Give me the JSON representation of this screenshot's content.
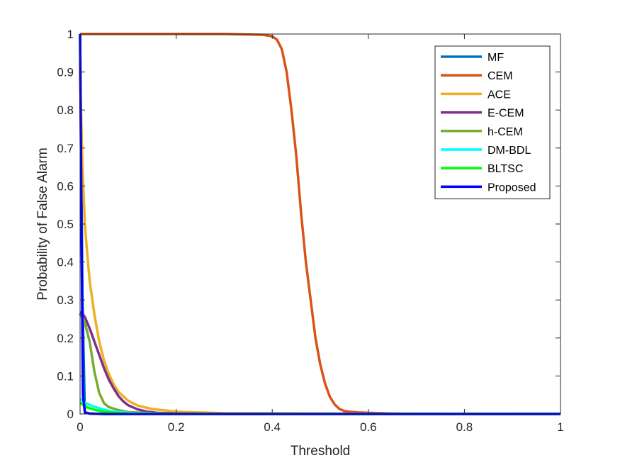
{
  "chart_data": {
    "type": "line",
    "title": "",
    "xlabel": "Threshold",
    "ylabel": "Probability of False Alarm",
    "xlim": [
      0,
      1
    ],
    "ylim": [
      0,
      1
    ],
    "xticks": [
      "0",
      "0.2",
      "0.4",
      "0.6",
      "0.8",
      "1"
    ],
    "yticks": [
      "0",
      "0.1",
      "0.2",
      "0.3",
      "0.4",
      "0.5",
      "0.6",
      "0.7",
      "0.8",
      "0.9",
      "1"
    ],
    "grid": false,
    "legend_position": "top-right",
    "series": [
      {
        "name": "MF",
        "color": "#0072BD",
        "x": [
          0,
          0.005,
          0.01,
          0.02,
          0.05,
          0.1,
          0.2,
          1
        ],
        "y": [
          1,
          0.3,
          0.004,
          0.001,
          0,
          0,
          0,
          0
        ]
      },
      {
        "name": "CEM",
        "color": "#D95319",
        "x": [
          0,
          0.1,
          0.2,
          0.3,
          0.38,
          0.4,
          0.41,
          0.42,
          0.43,
          0.44,
          0.45,
          0.46,
          0.47,
          0.48,
          0.49,
          0.5,
          0.51,
          0.52,
          0.53,
          0.54,
          0.55,
          0.56,
          0.58,
          0.6,
          0.65,
          0.7,
          1
        ],
        "y": [
          1,
          1,
          1,
          1,
          0.998,
          0.994,
          0.985,
          0.96,
          0.9,
          0.8,
          0.68,
          0.53,
          0.4,
          0.3,
          0.2,
          0.13,
          0.08,
          0.045,
          0.025,
          0.013,
          0.008,
          0.006,
          0.004,
          0.003,
          0.001,
          0,
          0
        ]
      },
      {
        "name": "ACE",
        "color": "#EDB120",
        "x": [
          0,
          0.005,
          0.01,
          0.015,
          0.02,
          0.03,
          0.04,
          0.05,
          0.06,
          0.07,
          0.08,
          0.1,
          0.12,
          0.15,
          0.2,
          0.3,
          0.5,
          1
        ],
        "y": [
          0.9,
          0.65,
          0.5,
          0.42,
          0.35,
          0.26,
          0.19,
          0.14,
          0.105,
          0.078,
          0.058,
          0.035,
          0.022,
          0.013,
          0.006,
          0.002,
          0.001,
          0
        ]
      },
      {
        "name": "E-CEM",
        "color": "#7E2F8E",
        "x": [
          0,
          0.003,
          0.01,
          0.02,
          0.03,
          0.04,
          0.05,
          0.06,
          0.07,
          0.08,
          0.09,
          0.1,
          0.12,
          0.14,
          0.16,
          0.2,
          0.3,
          1
        ],
        "y": [
          0.26,
          0.268,
          0.255,
          0.225,
          0.19,
          0.155,
          0.12,
          0.09,
          0.067,
          0.047,
          0.033,
          0.023,
          0.012,
          0.006,
          0.003,
          0.001,
          0,
          0
        ]
      },
      {
        "name": "h-CEM",
        "color": "#77AC30",
        "x": [
          0,
          0.005,
          0.01,
          0.02,
          0.03,
          0.04,
          0.05,
          0.06,
          0.08,
          0.1,
          0.15,
          0.2,
          1
        ],
        "y": [
          0.26,
          0.255,
          0.24,
          0.19,
          0.11,
          0.055,
          0.028,
          0.018,
          0.01,
          0.005,
          0.002,
          0,
          0
        ]
      },
      {
        "name": "DM-BDL",
        "color": "#00FFFF",
        "x": [
          0,
          0.005,
          0.01,
          0.02,
          0.03,
          0.05,
          0.07,
          0.1,
          0.15,
          0.2,
          1
        ],
        "y": [
          0.04,
          0.035,
          0.03,
          0.024,
          0.019,
          0.011,
          0.006,
          0.003,
          0.001,
          0,
          0
        ]
      },
      {
        "name": "BLTSC",
        "color": "#00FF00",
        "x": [
          0,
          0.005,
          0.01,
          0.02,
          0.03,
          0.05,
          0.07,
          0.1,
          0.15,
          1
        ],
        "y": [
          0.03,
          0.025,
          0.02,
          0.015,
          0.011,
          0.006,
          0.003,
          0.001,
          0,
          0
        ]
      },
      {
        "name": "Proposed",
        "color": "#0000FF",
        "x": [
          0,
          0.003,
          0.006,
          0.01,
          0.02,
          0.05,
          1
        ],
        "y": [
          1,
          0.5,
          0.05,
          0.004,
          0.001,
          0,
          0
        ]
      }
    ]
  }
}
